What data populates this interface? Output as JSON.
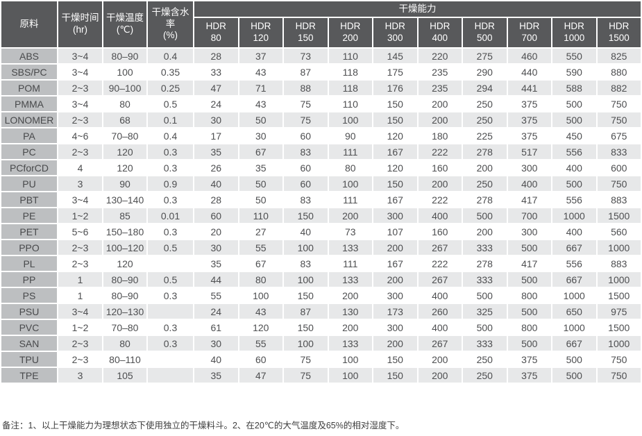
{
  "table": {
    "headers": {
      "material": "原料",
      "time": "干燥时间\n(hr)",
      "temp": "干燥温度\n(℃)",
      "moisture": "干燥含水率\n(%)",
      "capacity_group": "干燥能力",
      "capacity_cols": [
        "HDR\n80",
        "HDR\n120",
        "HDR\n150",
        "HDR\n200",
        "HDR\n300",
        "HDR\n400",
        "HDR\n500",
        "HDR\n700",
        "HDR\n1000",
        "HDR\n1500"
      ]
    },
    "rows": [
      {
        "material": "ABS",
        "time": "3~4",
        "temp": "80–90",
        "moisture": "0.4",
        "capacities": [
          28,
          37,
          73,
          110,
          145,
          220,
          275,
          460,
          550,
          825
        ]
      },
      {
        "material": "SBS/PC",
        "time": "3~4",
        "temp": "100",
        "moisture": "0.35",
        "capacities": [
          33,
          43,
          87,
          118,
          175,
          235,
          290,
          440,
          590,
          880
        ]
      },
      {
        "material": "POM",
        "time": "2~3",
        "temp": "90–100",
        "moisture": "0.25",
        "capacities": [
          47,
          71,
          88,
          118,
          176,
          235,
          294,
          441,
          588,
          882
        ]
      },
      {
        "material": "PMMA",
        "time": "3~4",
        "temp": "80",
        "moisture": "0.5",
        "capacities": [
          24,
          43,
          75,
          110,
          150,
          200,
          250,
          375,
          500,
          750
        ]
      },
      {
        "material": "LONOMER",
        "time": "2~3",
        "temp": "68",
        "moisture": "0.1",
        "capacities": [
          30,
          50,
          75,
          100,
          150,
          200,
          250,
          375,
          500,
          750
        ]
      },
      {
        "material": "PA",
        "time": "4~6",
        "temp": "70–80",
        "moisture": "0.4",
        "capacities": [
          17,
          30,
          60,
          90,
          120,
          180,
          225,
          375,
          450,
          675
        ]
      },
      {
        "material": "PC",
        "time": "2~3",
        "temp": "120",
        "moisture": "0.3",
        "capacities": [
          35,
          67,
          83,
          111,
          167,
          222,
          278,
          517,
          556,
          833
        ]
      },
      {
        "material": "PCforCD",
        "time": "4",
        "temp": "120",
        "moisture": "0.3",
        "capacities": [
          26,
          35,
          60,
          80,
          120,
          160,
          200,
          300,
          400,
          600
        ]
      },
      {
        "material": "PU",
        "time": "3",
        "temp": "90",
        "moisture": "0.9",
        "capacities": [
          40,
          50,
          60,
          100,
          150,
          200,
          250,
          400,
          500,
          750
        ]
      },
      {
        "material": "PBT",
        "time": "3~4",
        "temp": "130–140",
        "moisture": "0.3",
        "capacities": [
          28,
          50,
          83,
          111,
          167,
          222,
          278,
          417,
          556,
          883
        ]
      },
      {
        "material": "PE",
        "time": "1~2",
        "temp": "85",
        "moisture": "0.01",
        "capacities": [
          60,
          110,
          150,
          200,
          300,
          400,
          500,
          700,
          1000,
          1500
        ]
      },
      {
        "material": "PET",
        "time": "5~6",
        "temp": "150–180",
        "moisture": "0.3",
        "capacities": [
          20,
          27,
          40,
          73,
          107,
          160,
          200,
          300,
          400,
          560
        ]
      },
      {
        "material": "PPO",
        "time": "2~3",
        "temp": "100–120",
        "moisture": "0.5",
        "capacities": [
          30,
          55,
          100,
          133,
          200,
          267,
          333,
          500,
          667,
          1000
        ]
      },
      {
        "material": "PL",
        "time": "2~3",
        "temp": "120",
        "moisture": "",
        "capacities": [
          35,
          67,
          83,
          111,
          167,
          222,
          278,
          417,
          556,
          883
        ]
      },
      {
        "material": "PP",
        "time": "1",
        "temp": "80–90",
        "moisture": "0.5",
        "capacities": [
          44,
          80,
          100,
          133,
          200,
          267,
          333,
          500,
          667,
          1000
        ]
      },
      {
        "material": "PS",
        "time": "1",
        "temp": "80–90",
        "moisture": "0.3",
        "capacities": [
          55,
          100,
          150,
          200,
          300,
          400,
          500,
          800,
          1000,
          1500
        ]
      },
      {
        "material": "PSU",
        "time": "3~4",
        "temp": "120–130",
        "moisture": "",
        "capacities": [
          24,
          43,
          87,
          130,
          173,
          260,
          325,
          500,
          650,
          975
        ]
      },
      {
        "material": "PVC",
        "time": "1~2",
        "temp": "70–80",
        "moisture": "0.3",
        "capacities": [
          61,
          120,
          150,
          200,
          300,
          400,
          500,
          800,
          1000,
          1500
        ]
      },
      {
        "material": "SAN",
        "time": "2~3",
        "temp": "80",
        "moisture": "0.3",
        "capacities": [
          30,
          55,
          100,
          133,
          200,
          267,
          333,
          500,
          667,
          1000
        ]
      },
      {
        "material": "TPU",
        "time": "2~3",
        "temp": "80–110",
        "moisture": "",
        "capacities": [
          40,
          60,
          75,
          100,
          150,
          200,
          250,
          375,
          500,
          750
        ]
      },
      {
        "material": "TPE",
        "time": "3",
        "temp": "105",
        "moisture": "",
        "capacities": [
          35,
          47,
          75,
          100,
          150,
          200,
          250,
          375,
          500,
          750
        ]
      }
    ]
  },
  "footer": {
    "note": "备注：1、以上干燥能力为理想状态下使用独立的干燥料斗。2、在20℃的大气温度及65%的相对湿度下。"
  },
  "colors": {
    "header_bg": "#58595b",
    "header_text": "#ffffff",
    "material_col_bg": "#bdbfc1",
    "row_stripe_bg": "#e7e8e9",
    "row_alt_bg": "#ffffff",
    "cell_text": "#4d4e50",
    "grid_line": "#ffffff"
  }
}
